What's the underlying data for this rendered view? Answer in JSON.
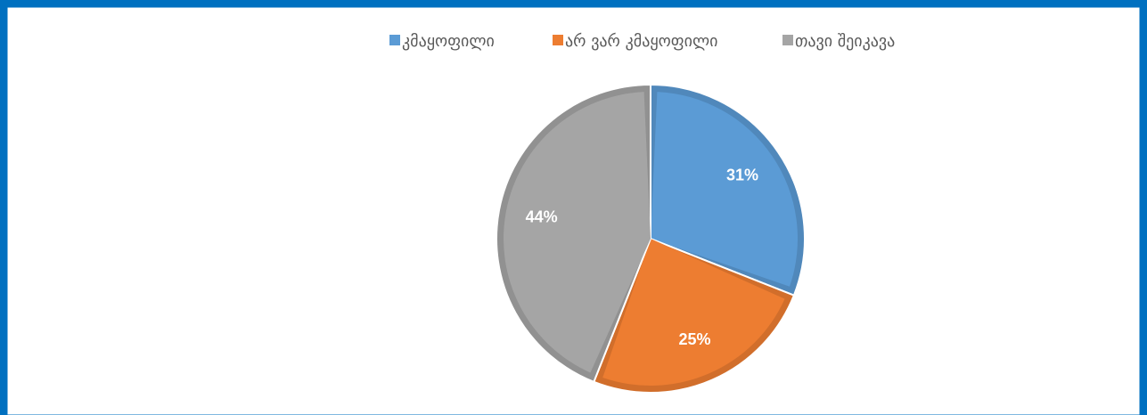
{
  "chart_data": {
    "type": "pie",
    "categories": [
      "კმაყოფილი",
      "არ ვარ კმაყოფილი",
      "თავი შეიკავა"
    ],
    "values": [
      31,
      25,
      44
    ],
    "value_labels": [
      "31%",
      "25%",
      "44%"
    ],
    "colors": [
      "#5b9bd5",
      "#ed7d31",
      "#a5a5a5"
    ],
    "legend": "top"
  }
}
